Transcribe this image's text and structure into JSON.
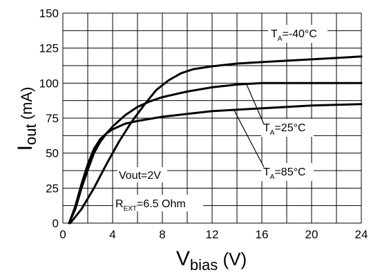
{
  "chart_data": {
    "type": "line",
    "xlabel": {
      "main": "V",
      "sub": "bias",
      "unit": " (V)"
    },
    "ylabel": {
      "main": "I",
      "sub": "out",
      "unit": " (mA)"
    },
    "xlim": [
      0,
      24
    ],
    "ylim": [
      0,
      150
    ],
    "x_ticks": [
      0,
      4,
      8,
      12,
      16,
      20,
      24
    ],
    "y_ticks": [
      0,
      25,
      50,
      75,
      100,
      125,
      150
    ],
    "grid": true,
    "series": [
      {
        "name": "TA=-40°C",
        "label": {
          "main": "T",
          "sub": "A",
          "rest": "=-40°C"
        },
        "x": [
          0.6,
          1.5,
          2.5,
          3.5,
          4.5,
          5.5,
          6.5,
          7.5,
          8.5,
          9.5,
          10.5,
          12,
          14,
          16,
          18,
          20,
          22,
          24
        ],
        "y": [
          0,
          10,
          25,
          42,
          58,
          72,
          84,
          95,
          102,
          107,
          110,
          112,
          114,
          115,
          116,
          117,
          118,
          119
        ]
      },
      {
        "name": "TA=25°C",
        "label": {
          "main": "T",
          "sub": "A",
          "rest": "=25°C"
        },
        "x": [
          0.5,
          1,
          1.5,
          2,
          2.5,
          3,
          3.5,
          4,
          5,
          6,
          7,
          8,
          10,
          12,
          14,
          16,
          20,
          24
        ],
        "y": [
          0,
          10,
          25,
          38,
          50,
          58,
          64,
          69,
          77,
          83,
          87,
          90,
          94,
          97,
          99,
          100,
          100,
          100
        ]
      },
      {
        "name": "TA=85°C",
        "label": {
          "main": "T",
          "sub": "A",
          "rest": "=85°C"
        },
        "x": [
          0.5,
          1,
          1.5,
          2,
          2.5,
          3,
          3.5,
          4,
          5,
          6,
          8,
          10,
          12,
          16,
          20,
          24
        ],
        "y": [
          0,
          12,
          28,
          42,
          53,
          60,
          64,
          67,
          71,
          73,
          76,
          78,
          80,
          82,
          84,
          85
        ]
      }
    ],
    "annotations": {
      "vout": "Vout=2V",
      "rext": {
        "main": "R",
        "sub": "EXT",
        "rest": "=6.5 Ohm"
      }
    }
  }
}
